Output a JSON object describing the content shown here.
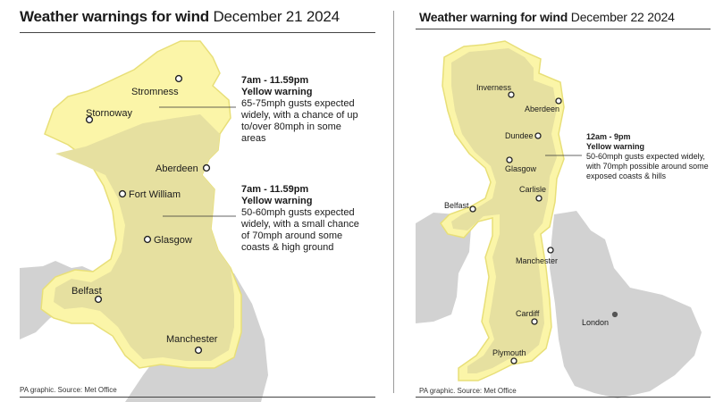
{
  "colors": {
    "land": "#d2d2d2",
    "warning_outer": "#fbf5a8",
    "warning_inner": "#e6e0a0",
    "warning_stroke": "#e8df78",
    "sea": "#ffffff",
    "text": "#1a1a1a"
  },
  "left": {
    "title_bold": "Weather warnings for wind",
    "title_date": "December 21 2024",
    "source": "PA graphic. Source: Met Office",
    "cities": {
      "stromness": "Stromness",
      "stornoway": "Stornoway",
      "aberdeen": "Aberdeen",
      "fort_william": "Fort William",
      "glasgow": "Glasgow",
      "belfast": "Belfast",
      "manchester": "Manchester"
    },
    "warnings": [
      {
        "time": "7am - 11.59pm",
        "level": "Yellow warning",
        "text": "65-75mph gusts expected widely, with a chance of up to/over 80mph in some areas"
      },
      {
        "time": "7am - 11.59pm",
        "level": "Yellow warning",
        "text": "50-60mph gusts expected widely, with a small chance of 70mph around some coasts & high ground"
      }
    ]
  },
  "right": {
    "title_bold": "Weather warning for wind",
    "title_date": "December 22 2024",
    "source": "PA graphic. Source: Met Office",
    "cities": {
      "inverness": "Inverness",
      "aberdeen": "Aberdeen",
      "dundee": "Dundee",
      "glasgow": "Glasgow",
      "carlisle": "Carlisle",
      "belfast": "Belfast",
      "manchester": "Manchester",
      "cardiff": "Cardiff",
      "london": "London",
      "plymouth": "Plymouth"
    },
    "warnings": [
      {
        "time": "12am - 9pm",
        "level": "Yellow warning",
        "text": "50-60mph gusts expected widely, with 70mph possible around some exposed coasts & hills"
      }
    ]
  }
}
